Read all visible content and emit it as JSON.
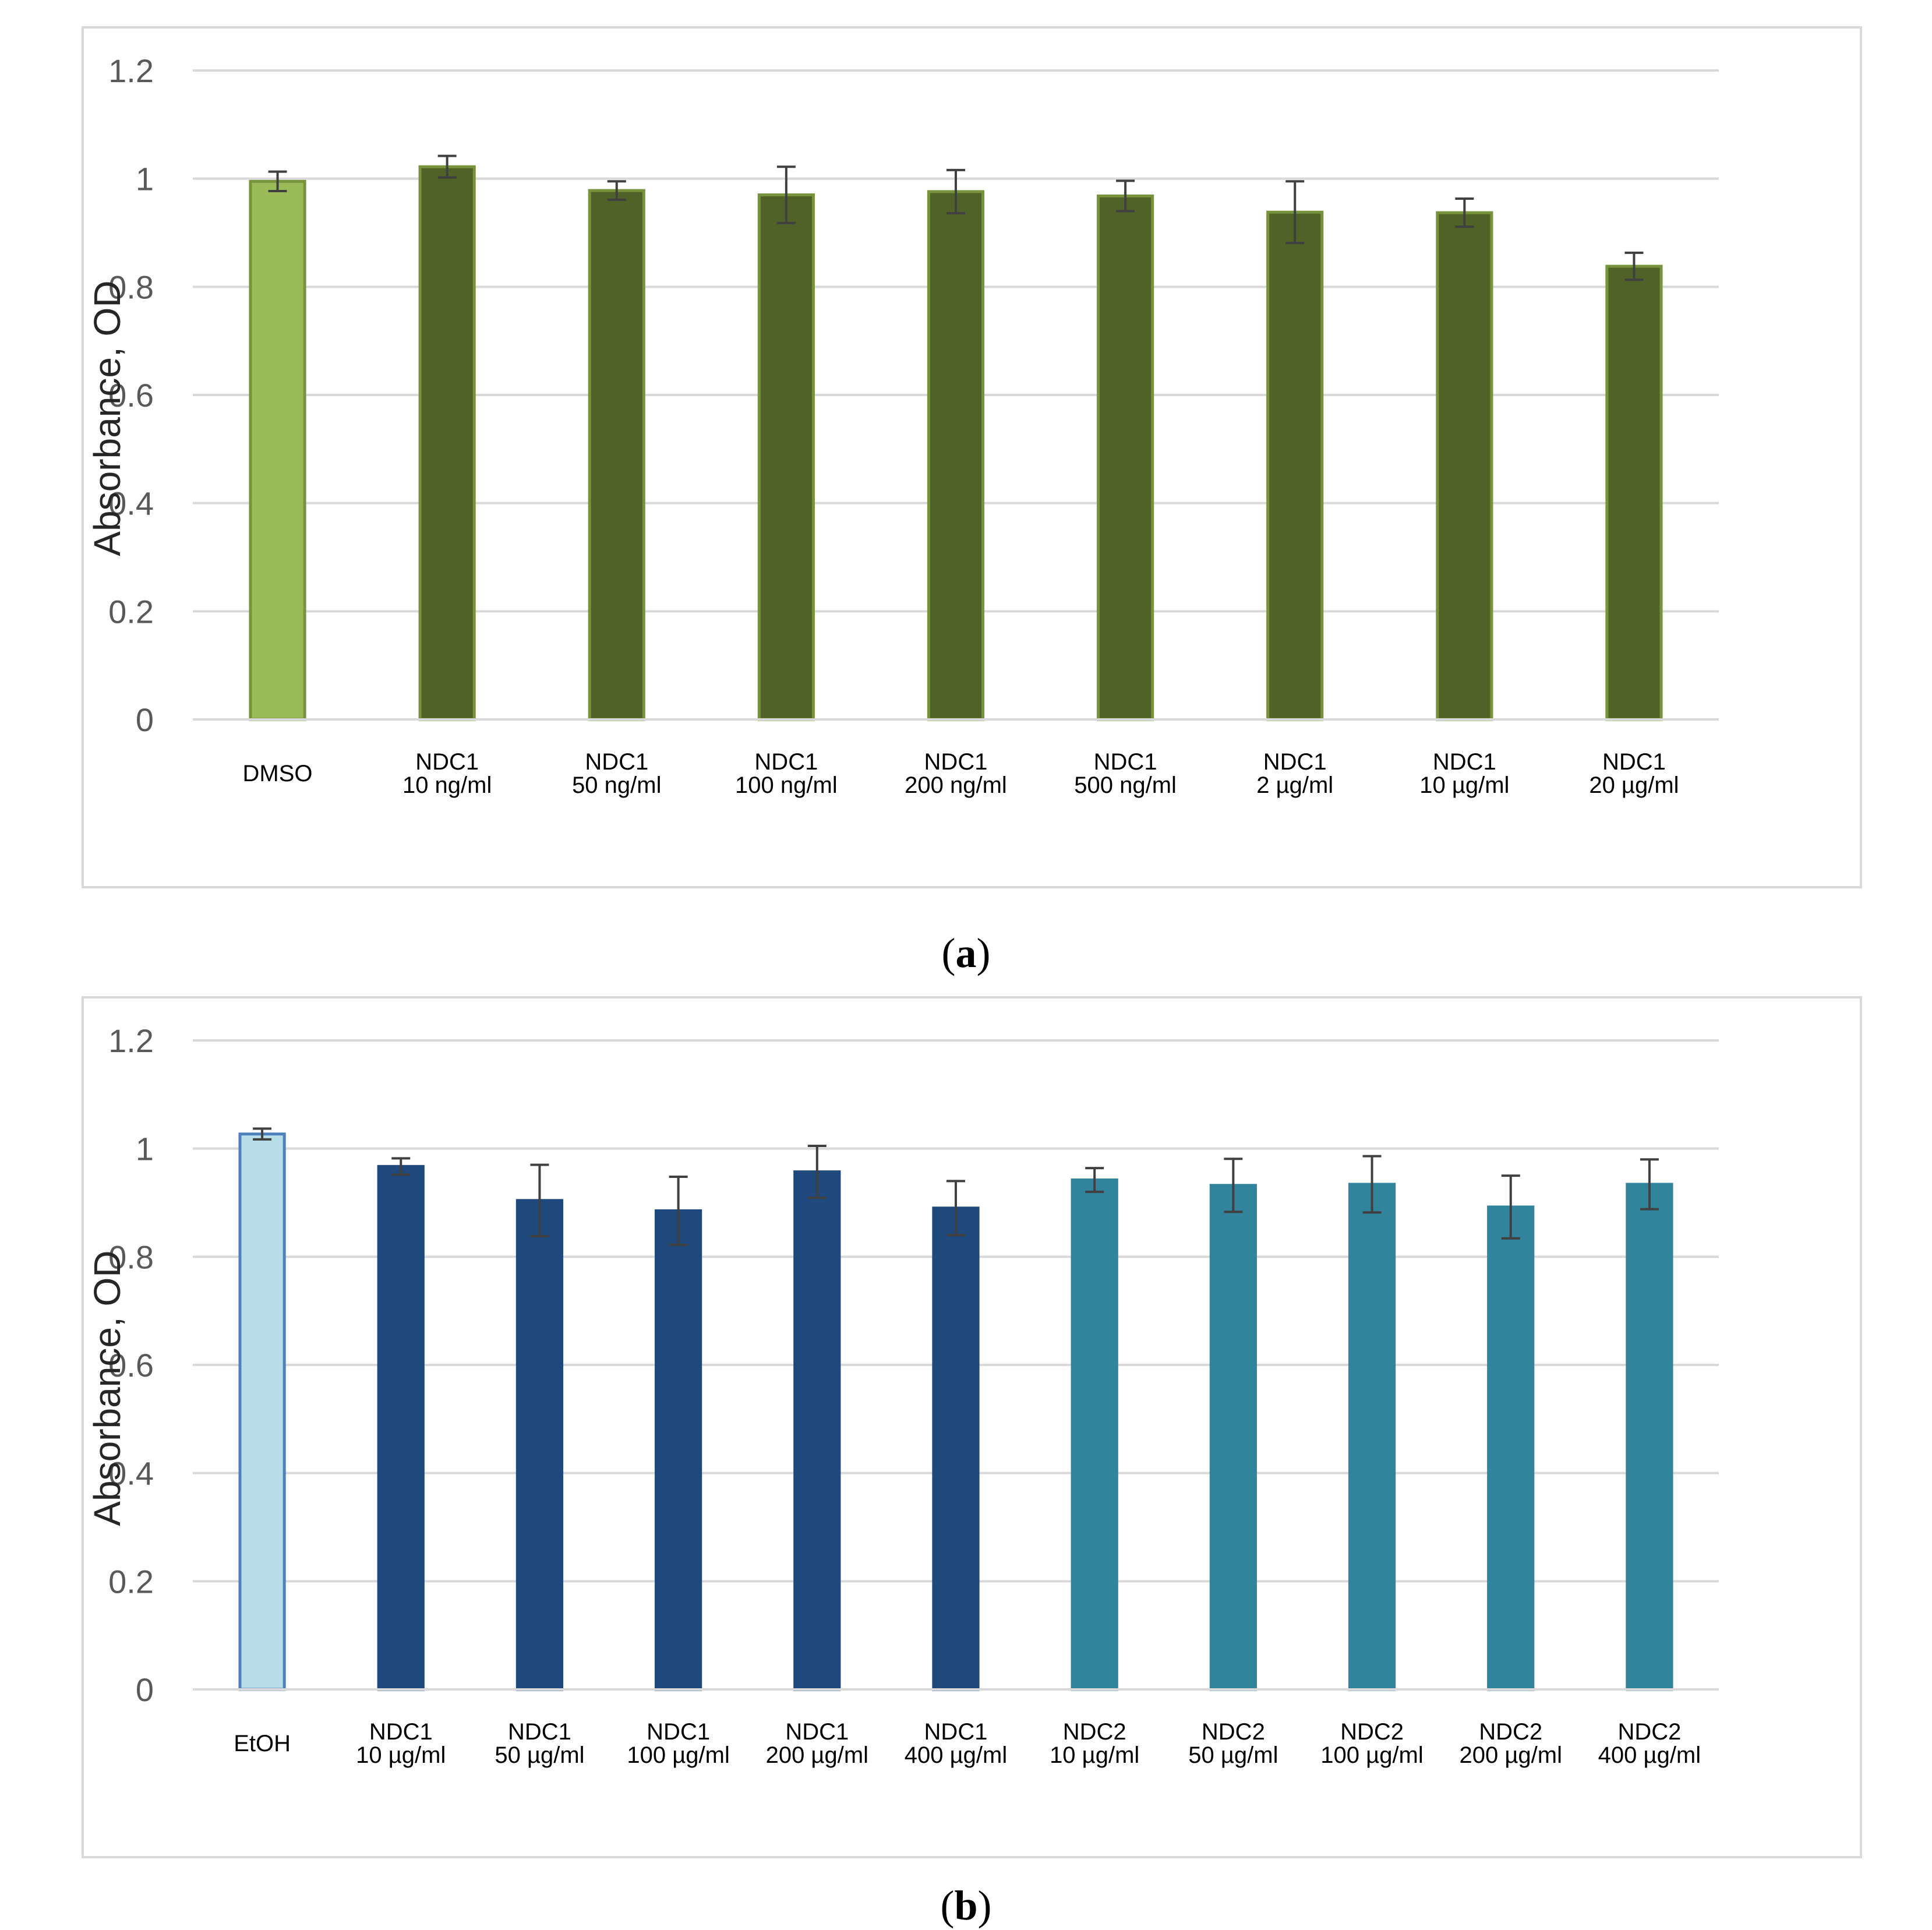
{
  "chart_data": [
    {
      "type": "bar",
      "panel": "a",
      "caption": "a",
      "title": "",
      "xlabel": "",
      "ylabel": "Absorbance, OD",
      "ylim": [
        0,
        1.2
      ],
      "yticks": [
        "0",
        "0.2",
        "0.4",
        "0.6",
        "0.8",
        "1",
        "1.2"
      ],
      "grid": true,
      "categories": [
        [
          "DMSO"
        ],
        [
          "NDC1",
          "10 ng/ml"
        ],
        [
          "NDC1",
          "50 ng/ml"
        ],
        [
          "NDC1",
          "100 ng/ml"
        ],
        [
          "NDC1",
          "200 ng/ml"
        ],
        [
          "NDC1",
          "500 ng/ml"
        ],
        [
          "NDC1",
          "2 µg/ml"
        ],
        [
          "NDC1",
          "10 µg/ml"
        ],
        [
          "NDC1",
          "20 µg/ml"
        ]
      ],
      "values": [
        0.995,
        1.022,
        0.978,
        0.97,
        0.976,
        0.968,
        0.938,
        0.937,
        0.838
      ],
      "errors": [
        0.018,
        0.02,
        0.017,
        0.052,
        0.04,
        0.028,
        0.057,
        0.026,
        0.025
      ],
      "colors": [
        "#9bbb59",
        "#4f6228",
        "#4f6228",
        "#4f6228",
        "#4f6228",
        "#4f6228",
        "#4f6228",
        "#4f6228",
        "#4f6228"
      ],
      "edge_colors": [
        "#77933c",
        "#77933c",
        "#77933c",
        "#77933c",
        "#77933c",
        "#77933c",
        "#77933c",
        "#77933c",
        "#77933c"
      ]
    },
    {
      "type": "bar",
      "panel": "b",
      "caption": "b",
      "title": "",
      "xlabel": "",
      "ylabel": "Absorbance, OD",
      "ylim": [
        0,
        1.2
      ],
      "yticks": [
        "0",
        "0.2",
        "0.4",
        "0.6",
        "0.8",
        "1",
        "1.2"
      ],
      "grid": true,
      "categories": [
        [
          "EtOH"
        ],
        [
          "NDC1",
          "10 µg/ml"
        ],
        [
          "NDC1",
          "50 µg/ml"
        ],
        [
          "NDC1",
          "100 µg/ml"
        ],
        [
          "NDC1",
          "200 µg/ml"
        ],
        [
          "NDC1",
          "400 µg/ml"
        ],
        [
          "NDC2",
          "10 µg/ml"
        ],
        [
          "NDC2",
          "50 µg/ml"
        ],
        [
          "NDC2",
          "100 µg/ml"
        ],
        [
          "NDC2",
          "200 µg/ml"
        ],
        [
          "NDC2",
          "400 µg/ml"
        ]
      ],
      "values": [
        1.027,
        0.967,
        0.904,
        0.885,
        0.957,
        0.89,
        0.942,
        0.932,
        0.934,
        0.892,
        0.934
      ],
      "errors": [
        0.01,
        0.015,
        0.066,
        0.063,
        0.048,
        0.05,
        0.022,
        0.049,
        0.052,
        0.058,
        0.046
      ],
      "colors": [
        "#b7dde8",
        "#1f497d",
        "#1f497d",
        "#1f497d",
        "#1f497d",
        "#1f497d",
        "#31849b",
        "#31849b",
        "#31849b",
        "#31849b",
        "#31849b"
      ],
      "edge_colors": [
        "#4f81bd",
        "#1f497d",
        "#1f497d",
        "#1f497d",
        "#1f497d",
        "#1f497d",
        "#31849b",
        "#31849b",
        "#31849b",
        "#31849b",
        "#31849b"
      ]
    }
  ],
  "style": {
    "grid_color": "#d9d9d9",
    "errorbar_color": "#404040",
    "tick_color": "#595959"
  }
}
